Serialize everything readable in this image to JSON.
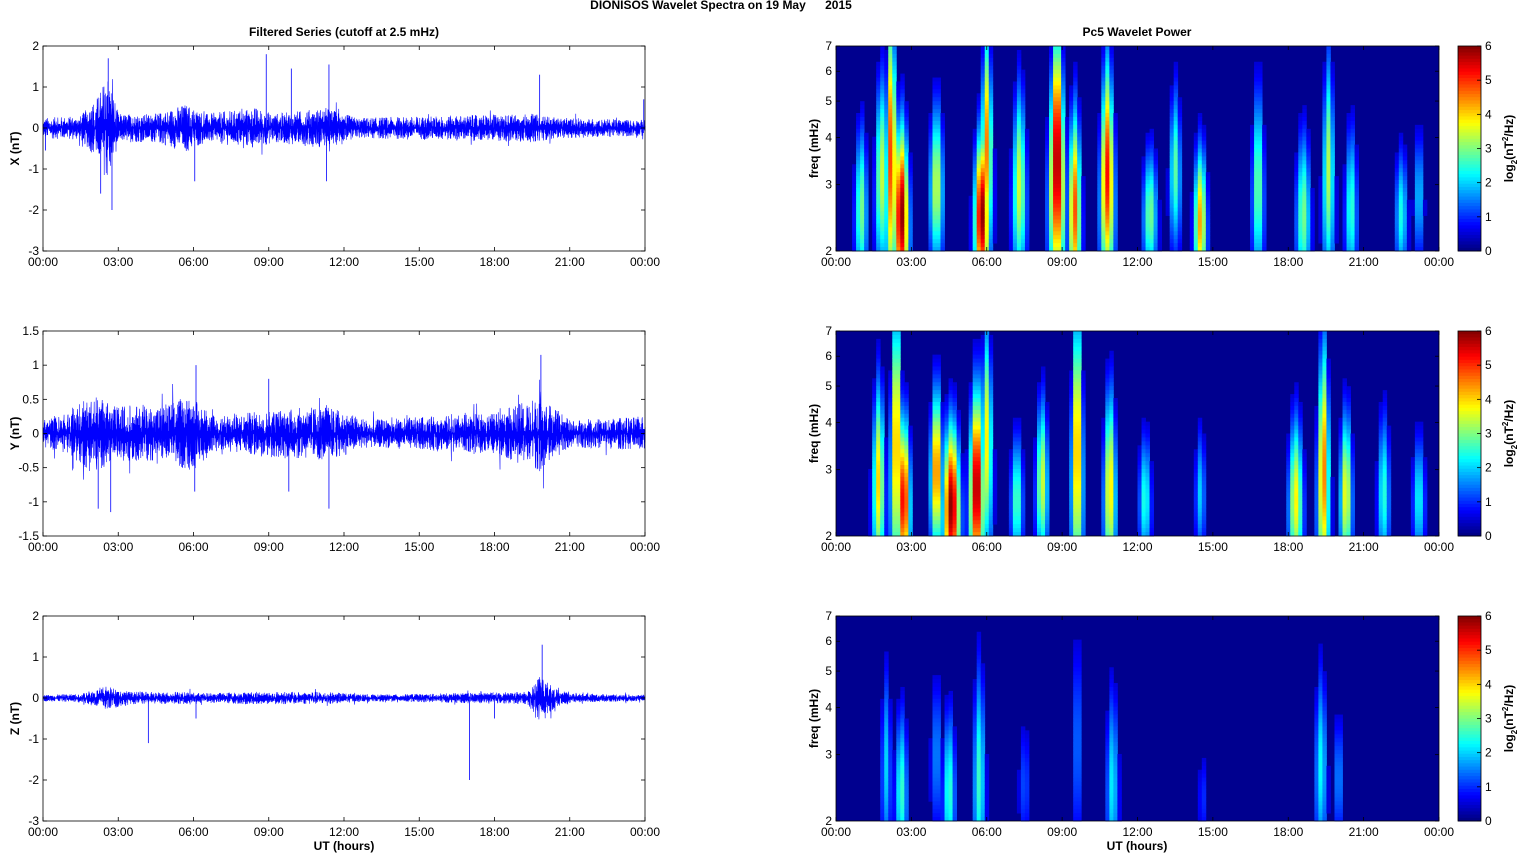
{
  "figure": {
    "title_left": "DIONISOS Wavelet Spectra on 19 May",
    "title_right": "2015",
    "left_column_title": "Filtered Series (cutoff at 2.5 mHz)",
    "right_column_title": "Pc5 Wavelet Power",
    "xlabel": "UT (hours)"
  },
  "colors": {
    "series": "#0000ff",
    "spectrum_background": "#00008f"
  },
  "chart_data": [
    {
      "type": "line",
      "component": "X",
      "ylabel": "X (nT)",
      "xticks": [
        "00:00",
        "03:00",
        "06:00",
        "09:00",
        "12:00",
        "15:00",
        "18:00",
        "21:00",
        "00:00"
      ],
      "yticks": [
        "2",
        "1",
        "0",
        "-1",
        "-2",
        "-3"
      ],
      "ylim": [
        -3,
        2
      ],
      "xlim_hours": [
        0,
        24
      ],
      "envelope": [
        {
          "h": 0.0,
          "a": 0.25
        },
        {
          "h": 1.5,
          "a": 0.3
        },
        {
          "h": 2.2,
          "a": 0.8
        },
        {
          "h": 2.6,
          "a": 1.4
        },
        {
          "h": 3.0,
          "a": 0.35
        },
        {
          "h": 4.5,
          "a": 0.35
        },
        {
          "h": 5.7,
          "a": 0.6
        },
        {
          "h": 6.5,
          "a": 0.35
        },
        {
          "h": 8.5,
          "a": 0.5
        },
        {
          "h": 9.2,
          "a": 0.35
        },
        {
          "h": 11.3,
          "a": 0.5
        },
        {
          "h": 12.5,
          "a": 0.25
        },
        {
          "h": 19.5,
          "a": 0.35
        },
        {
          "h": 20.5,
          "a": 0.25
        },
        {
          "h": 24.0,
          "a": 0.2
        }
      ],
      "spikes": [
        {
          "h": 2.6,
          "v": 1.7
        },
        {
          "h": 2.75,
          "v": -2.0
        },
        {
          "h": 2.3,
          "v": -1.6
        },
        {
          "h": 8.9,
          "v": 1.8
        },
        {
          "h": 9.9,
          "v": 1.45
        },
        {
          "h": 11.4,
          "v": 1.55
        },
        {
          "h": 11.3,
          "v": -1.3
        },
        {
          "h": 6.05,
          "v": -1.3
        },
        {
          "h": 19.8,
          "v": 1.3
        },
        {
          "h": 0.1,
          "v": -0.55
        },
        {
          "h": 23.95,
          "v": 0.7
        }
      ]
    },
    {
      "type": "line",
      "component": "Y",
      "ylabel": "Y (nT)",
      "xticks": [
        "00:00",
        "03:00",
        "06:00",
        "09:00",
        "12:00",
        "15:00",
        "18:00",
        "21:00",
        "00:00"
      ],
      "yticks": [
        "1.5",
        "1",
        "0.5",
        "0",
        "-0.5",
        "-1",
        "-1.5"
      ],
      "ylim": [
        -1.5,
        1.5
      ],
      "xlim_hours": [
        0,
        24
      ],
      "envelope": [
        {
          "h": 0.0,
          "a": 0.2
        },
        {
          "h": 1.0,
          "a": 0.3
        },
        {
          "h": 2.0,
          "a": 0.6
        },
        {
          "h": 2.8,
          "a": 0.4
        },
        {
          "h": 4.5,
          "a": 0.4
        },
        {
          "h": 5.8,
          "a": 0.55
        },
        {
          "h": 7.0,
          "a": 0.25
        },
        {
          "h": 9.0,
          "a": 0.35
        },
        {
          "h": 11.3,
          "a": 0.4
        },
        {
          "h": 13.0,
          "a": 0.2
        },
        {
          "h": 18.0,
          "a": 0.3
        },
        {
          "h": 19.8,
          "a": 0.55
        },
        {
          "h": 21.0,
          "a": 0.2
        },
        {
          "h": 24.0,
          "a": 0.25
        }
      ],
      "spikes": [
        {
          "h": 2.7,
          "v": -1.15
        },
        {
          "h": 2.2,
          "v": -1.1
        },
        {
          "h": 6.1,
          "v": 1.0
        },
        {
          "h": 6.05,
          "v": -0.85
        },
        {
          "h": 9.8,
          "v": -0.85
        },
        {
          "h": 11.4,
          "v": -1.1
        },
        {
          "h": 19.85,
          "v": 1.15
        },
        {
          "h": 9.0,
          "v": 0.8
        }
      ]
    },
    {
      "type": "line",
      "component": "Z",
      "ylabel": "Z (nT)",
      "xticks": [
        "00:00",
        "03:00",
        "06:00",
        "09:00",
        "12:00",
        "15:00",
        "18:00",
        "21:00",
        "00:00"
      ],
      "yticks": [
        "2",
        "1",
        "0",
        "-1",
        "-2",
        "-3"
      ],
      "ylim": [
        -3,
        2
      ],
      "xlim_hours": [
        0,
        24
      ],
      "envelope": [
        {
          "h": 0.0,
          "a": 0.08
        },
        {
          "h": 1.5,
          "a": 0.1
        },
        {
          "h": 2.5,
          "a": 0.3
        },
        {
          "h": 3.5,
          "a": 0.15
        },
        {
          "h": 5.5,
          "a": 0.15
        },
        {
          "h": 6.5,
          "a": 0.12
        },
        {
          "h": 8.0,
          "a": 0.15
        },
        {
          "h": 11.3,
          "a": 0.15
        },
        {
          "h": 13.0,
          "a": 0.08
        },
        {
          "h": 19.3,
          "a": 0.15
        },
        {
          "h": 19.8,
          "a": 0.55
        },
        {
          "h": 20.5,
          "a": 0.2
        },
        {
          "h": 21.5,
          "a": 0.1
        },
        {
          "h": 24.0,
          "a": 0.08
        }
      ],
      "spikes": [
        {
          "h": 4.2,
          "v": -1.1
        },
        {
          "h": 17.0,
          "v": -2.0
        },
        {
          "h": 19.9,
          "v": 1.3
        },
        {
          "h": 6.1,
          "v": -0.5
        },
        {
          "h": 18.0,
          "v": -0.5
        }
      ]
    },
    {
      "type": "heatmap",
      "component": "X",
      "ylabel": "freq (mHz)",
      "xticks": [
        "00:00",
        "03:00",
        "06:00",
        "09:00",
        "12:00",
        "15:00",
        "18:00",
        "21:00",
        "00:00"
      ],
      "yticks": [
        "7",
        "6",
        "5",
        "4",
        "3",
        "2"
      ],
      "ylim_mHz": [
        2,
        7
      ],
      "y_scale": "log",
      "colorbar": {
        "label": "log2(nT2/Hz)",
        "label_base": "log",
        "label_sub": "2",
        "label_mid": "(nT",
        "label_sup": "2",
        "label_end": "/Hz)",
        "ticks": [
          "6",
          "5",
          "4",
          "3",
          "2",
          "1",
          "0"
        ],
        "range": [
          0,
          6
        ],
        "colormap": "jet"
      },
      "blobs": [
        {
          "h": 2.6,
          "f": 2.5,
          "v": 6.0,
          "w": 0.35,
          "fw": 0.55
        },
        {
          "h": 2.2,
          "f": 3.6,
          "v": 5.0,
          "w": 0.3,
          "fw": 0.9
        },
        {
          "h": 1.8,
          "f": 3.2,
          "v": 3.5,
          "w": 0.3,
          "fw": 0.6
        },
        {
          "h": 5.8,
          "f": 2.5,
          "v": 6.0,
          "w": 0.35,
          "fw": 0.5
        },
        {
          "h": 6.0,
          "f": 3.8,
          "v": 4.5,
          "w": 0.3,
          "fw": 0.7
        },
        {
          "h": 4.0,
          "f": 3.0,
          "v": 3.5,
          "w": 0.35,
          "fw": 0.5
        },
        {
          "h": 8.8,
          "f": 3.5,
          "v": 6.0,
          "w": 0.4,
          "fw": 0.8
        },
        {
          "h": 9.5,
          "f": 2.6,
          "v": 4.8,
          "w": 0.3,
          "fw": 0.6
        },
        {
          "h": 10.8,
          "f": 3.2,
          "v": 5.2,
          "w": 0.35,
          "fw": 0.7
        },
        {
          "h": 1.0,
          "f": 2.6,
          "v": 3.0,
          "w": 0.3,
          "fw": 0.5
        },
        {
          "h": 7.3,
          "f": 3.0,
          "v": 3.5,
          "w": 0.35,
          "fw": 0.6
        },
        {
          "h": 12.5,
          "f": 2.5,
          "v": 3.0,
          "w": 0.35,
          "fw": 0.4
        },
        {
          "h": 14.5,
          "f": 2.4,
          "v": 4.3,
          "w": 0.3,
          "fw": 0.45
        },
        {
          "h": 13.5,
          "f": 3.3,
          "v": 2.8,
          "w": 0.3,
          "fw": 0.5
        },
        {
          "h": 16.8,
          "f": 3.0,
          "v": 3.0,
          "w": 0.3,
          "fw": 0.6
        },
        {
          "h": 18.6,
          "f": 2.5,
          "v": 3.0,
          "w": 0.35,
          "fw": 0.5
        },
        {
          "h": 19.6,
          "f": 3.3,
          "v": 3.3,
          "w": 0.3,
          "fw": 0.7
        },
        {
          "h": 20.5,
          "f": 2.6,
          "v": 2.6,
          "w": 0.3,
          "fw": 0.5
        },
        {
          "h": 22.5,
          "f": 2.5,
          "v": 2.4,
          "w": 0.3,
          "fw": 0.4
        },
        {
          "h": 23.2,
          "f": 2.8,
          "v": 2.0,
          "w": 0.25,
          "fw": 0.4
        }
      ]
    },
    {
      "type": "heatmap",
      "component": "Y",
      "ylabel": "freq (mHz)",
      "xticks": [
        "00:00",
        "03:00",
        "06:00",
        "09:00",
        "12:00",
        "15:00",
        "18:00",
        "21:00",
        "00:00"
      ],
      "yticks": [
        "7",
        "6",
        "5",
        "4",
        "3",
        "2"
      ],
      "ylim_mHz": [
        2,
        7
      ],
      "y_scale": "log",
      "colorbar": {
        "label": "log2(nT2/Hz)",
        "label_base": "log",
        "label_sub": "2",
        "label_mid": "(nT",
        "label_sup": "2",
        "label_end": "/Hz)",
        "ticks": [
          "6",
          "5",
          "4",
          "3",
          "2",
          "1",
          "0"
        ],
        "range": [
          0,
          6
        ],
        "colormap": "jet"
      },
      "blobs": [
        {
          "h": 2.7,
          "f": 2.5,
          "v": 5.5,
          "w": 0.3,
          "fw": 0.5
        },
        {
          "h": 2.4,
          "f": 3.6,
          "v": 4.5,
          "w": 0.3,
          "fw": 0.9
        },
        {
          "h": 1.7,
          "f": 2.8,
          "v": 4.0,
          "w": 0.3,
          "fw": 0.6
        },
        {
          "h": 4.6,
          "f": 2.4,
          "v": 6.0,
          "w": 0.4,
          "fw": 0.5
        },
        {
          "h": 5.6,
          "f": 2.7,
          "v": 6.0,
          "w": 0.35,
          "fw": 0.6
        },
        {
          "h": 4.0,
          "f": 3.0,
          "v": 4.8,
          "w": 0.3,
          "fw": 0.5
        },
        {
          "h": 6.0,
          "f": 3.6,
          "v": 3.8,
          "w": 0.3,
          "fw": 0.7
        },
        {
          "h": 8.2,
          "f": 2.8,
          "v": 3.5,
          "w": 0.3,
          "fw": 0.5
        },
        {
          "h": 9.6,
          "f": 3.5,
          "v": 4.5,
          "w": 0.3,
          "fw": 0.9
        },
        {
          "h": 10.9,
          "f": 2.7,
          "v": 4.0,
          "w": 0.3,
          "fw": 0.6
        },
        {
          "h": 7.2,
          "f": 2.5,
          "v": 2.8,
          "w": 0.3,
          "fw": 0.4
        },
        {
          "h": 12.3,
          "f": 2.5,
          "v": 2.5,
          "w": 0.3,
          "fw": 0.4
        },
        {
          "h": 18.3,
          "f": 2.5,
          "v": 3.8,
          "w": 0.35,
          "fw": 0.5
        },
        {
          "h": 19.4,
          "f": 3.0,
          "v": 4.6,
          "w": 0.3,
          "fw": 0.8
        },
        {
          "h": 20.3,
          "f": 2.6,
          "v": 3.8,
          "w": 0.3,
          "fw": 0.5
        },
        {
          "h": 21.8,
          "f": 2.6,
          "v": 2.5,
          "w": 0.3,
          "fw": 0.5
        },
        {
          "h": 23.2,
          "f": 2.5,
          "v": 2.3,
          "w": 0.3,
          "fw": 0.4
        },
        {
          "h": 14.5,
          "f": 2.6,
          "v": 2.0,
          "w": 0.25,
          "fw": 0.4
        }
      ]
    },
    {
      "type": "heatmap",
      "component": "Z",
      "ylabel": "freq (mHz)",
      "xticks": [
        "00:00",
        "03:00",
        "06:00",
        "09:00",
        "12:00",
        "15:00",
        "18:00",
        "21:00",
        "00:00"
      ],
      "yticks": [
        "7",
        "6",
        "5",
        "4",
        "3",
        "2"
      ],
      "ylim_mHz": [
        2,
        7
      ],
      "y_scale": "log",
      "colorbar": {
        "label": "log2(nT2/Hz)",
        "label_base": "log",
        "label_sub": "2",
        "label_mid": "(nT",
        "label_sup": "2",
        "label_end": "/Hz)",
        "ticks": [
          "6",
          "5",
          "4",
          "3",
          "2",
          "1",
          "0"
        ],
        "range": [
          0,
          6
        ],
        "colormap": "jet"
      },
      "blobs": [
        {
          "h": 2.6,
          "f": 2.4,
          "v": 2.6,
          "w": 0.3,
          "fw": 0.5
        },
        {
          "h": 2.0,
          "f": 2.8,
          "v": 2.0,
          "w": 0.25,
          "fw": 0.6
        },
        {
          "h": 4.5,
          "f": 2.4,
          "v": 2.6,
          "w": 0.3,
          "fw": 0.5
        },
        {
          "h": 5.7,
          "f": 2.6,
          "v": 2.6,
          "w": 0.3,
          "fw": 0.7
        },
        {
          "h": 4.0,
          "f": 3.0,
          "v": 1.6,
          "w": 0.3,
          "fw": 0.5
        },
        {
          "h": 11.0,
          "f": 2.5,
          "v": 2.2,
          "w": 0.3,
          "fw": 0.6
        },
        {
          "h": 9.6,
          "f": 3.3,
          "v": 1.5,
          "w": 0.25,
          "fw": 0.7
        },
        {
          "h": 7.5,
          "f": 2.5,
          "v": 1.2,
          "w": 0.3,
          "fw": 0.4
        },
        {
          "h": 19.3,
          "f": 2.8,
          "v": 2.3,
          "w": 0.3,
          "fw": 0.6
        },
        {
          "h": 20.0,
          "f": 2.6,
          "v": 1.6,
          "w": 0.25,
          "fw": 0.4
        },
        {
          "h": 14.6,
          "f": 2.3,
          "v": 1.0,
          "w": 0.25,
          "fw": 0.3
        }
      ]
    }
  ]
}
